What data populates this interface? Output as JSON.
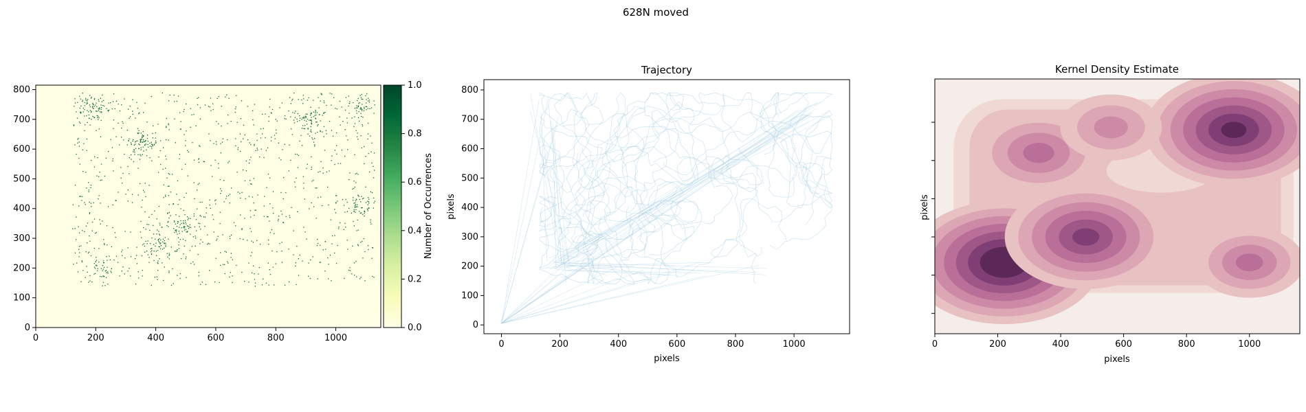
{
  "suptitle": "628N moved",
  "chart_data": [
    {
      "type": "heatmap",
      "title": "",
      "xlabel": "",
      "ylabel": "",
      "xlim": [
        0,
        1150
      ],
      "ylim": [
        0,
        815
      ],
      "x_ticks": [
        0,
        200,
        400,
        600,
        800,
        1000
      ],
      "y_ticks": [
        0,
        100,
        200,
        300,
        400,
        500,
        600,
        700,
        800
      ],
      "colorbar": {
        "label": "Number of Occurrences",
        "range": [
          0,
          1
        ],
        "ticks": [
          "0.0",
          "0.2",
          "0.4",
          "0.6",
          "0.8",
          "1.0"
        ],
        "colors": [
          "#ffffe5",
          "#f7fcb9",
          "#d9f0a3",
          "#addd8e",
          "#78c679",
          "#41ab5d",
          "#238443",
          "#006837",
          "#004529"
        ]
      },
      "background_color": "#ffffe5",
      "point_color": "#006837",
      "occupied_region": {
        "x": [
          120,
          1130
        ],
        "y": [
          140,
          790
        ]
      },
      "dense_clusters": [
        [
          215,
          200
        ],
        [
          490,
          345
        ],
        [
          910,
          700
        ],
        [
          1090,
          750
        ],
        [
          350,
          620
        ],
        [
          190,
          740
        ],
        [
          1080,
          410
        ],
        [
          410,
          270
        ]
      ]
    },
    {
      "type": "line",
      "title": "Trajectory",
      "xlabel": "pixels",
      "ylabel": "pixels",
      "xlim": [
        -60,
        1190
      ],
      "ylim": [
        -30,
        835
      ],
      "x_ticks": [
        0,
        200,
        400,
        600,
        800,
        1000
      ],
      "y_ticks": [
        0,
        100,
        200,
        300,
        400,
        500,
        600,
        700,
        800
      ],
      "line_color": "#9ecae1",
      "origin_point": [
        0,
        5
      ],
      "occupied_region": {
        "x": [
          130,
          1130
        ],
        "y": [
          140,
          790
        ]
      },
      "hub_point": [
        1040,
        725
      ],
      "long_segment_targets": [
        [
          1040,
          720
        ],
        [
          1060,
          730
        ],
        [
          1080,
          740
        ],
        [
          210,
          200
        ],
        [
          200,
          180
        ],
        [
          230,
          220
        ],
        [
          140,
          760
        ],
        [
          160,
          700
        ],
        [
          180,
          650
        ],
        [
          700,
          200
        ],
        [
          900,
          180
        ],
        [
          1050,
          720
        ],
        [
          1030,
          700
        ],
        [
          600,
          170
        ],
        [
          450,
          200
        ],
        [
          350,
          190
        ]
      ]
    },
    {
      "type": "heatmap",
      "title": "Kernel Density Estimate",
      "xlabel": "pixels",
      "ylabel": "pixels",
      "xlim": [
        0,
        1160
      ],
      "x_ticks": [
        0,
        200,
        400,
        600,
        800,
        1000
      ],
      "kde_colors": [
        "#f5ede9",
        "#f0d9d5",
        "#e8c1c3",
        "#dca6b4",
        "#cd8aa6",
        "#b96f97",
        "#9f5788",
        "#7f3f74",
        "#5c2858"
      ],
      "kde_peaks": [
        {
          "x": 220,
          "y": 200,
          "weight": 1.0
        },
        {
          "x": 480,
          "y": 300,
          "weight": 0.8
        },
        {
          "x": 950,
          "y": 720,
          "weight": 0.9
        },
        {
          "x": 330,
          "y": 630,
          "weight": 0.55
        },
        {
          "x": 1000,
          "y": 200,
          "weight": 0.45
        },
        {
          "x": 560,
          "y": 730,
          "weight": 0.4
        }
      ]
    }
  ]
}
